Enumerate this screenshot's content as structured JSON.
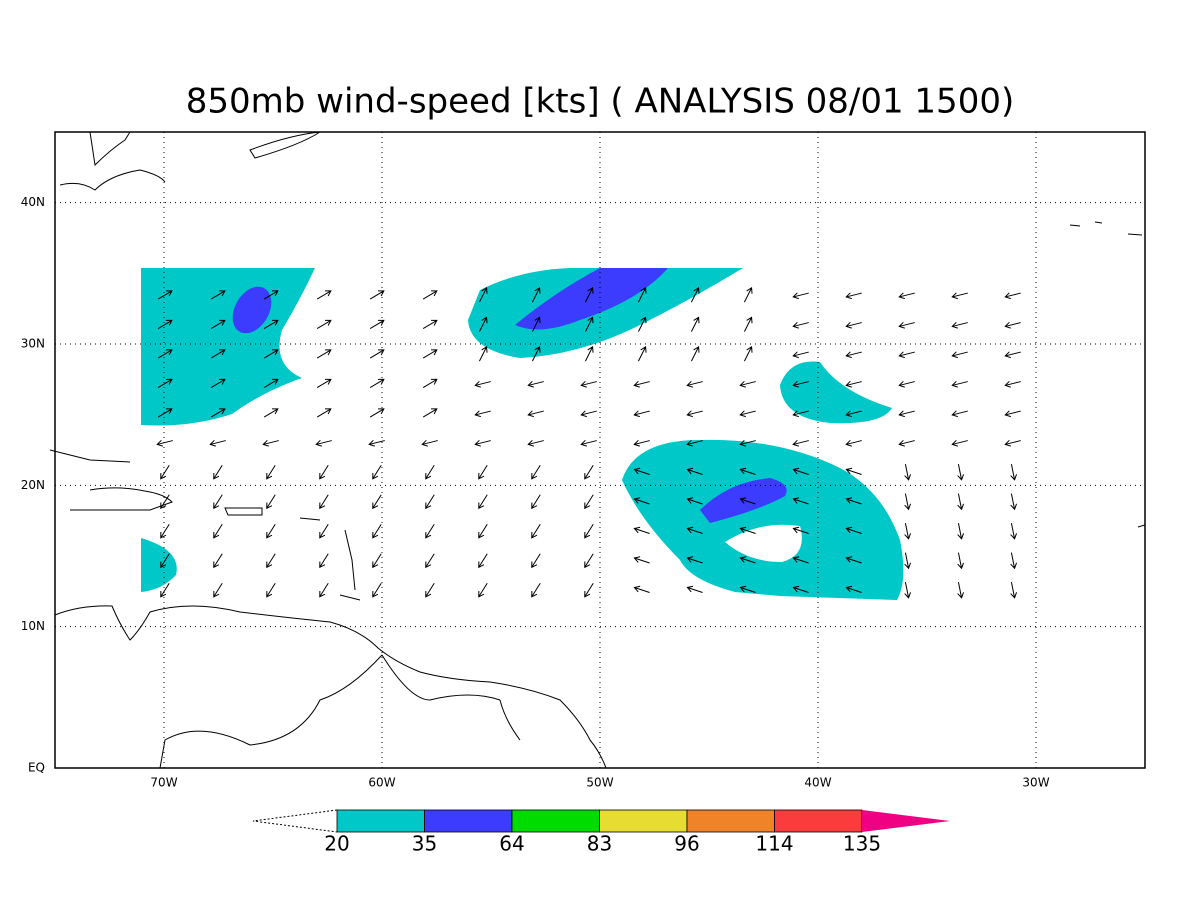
{
  "title": "850mb wind-speed [kts] ( ANALYSIS 08/01 1500)",
  "map": {
    "xlim": [
      -75,
      -25
    ],
    "ylim": [
      0,
      45
    ],
    "xticks": [
      {
        "value": -70,
        "label": "70W"
      },
      {
        "value": -60,
        "label": "60W"
      },
      {
        "value": -50,
        "label": "50W"
      },
      {
        "value": -40,
        "label": "40W"
      },
      {
        "value": -30,
        "label": "30W"
      }
    ],
    "yticks": [
      {
        "value": 0,
        "label": "EQ"
      },
      {
        "value": 10,
        "label": "10N"
      },
      {
        "value": 20,
        "label": "20N"
      },
      {
        "value": 30,
        "label": "30N"
      },
      {
        "value": 40,
        "label": "40N"
      }
    ],
    "grid": true
  },
  "colorbar": {
    "levels": [
      20,
      35,
      64,
      83,
      96,
      114,
      135
    ],
    "colors": [
      "#00c8c8",
      "#3c3cff",
      "#00dc00",
      "#e6dc32",
      "#f08228",
      "#fa3c3c",
      "#f00082"
    ]
  }
}
